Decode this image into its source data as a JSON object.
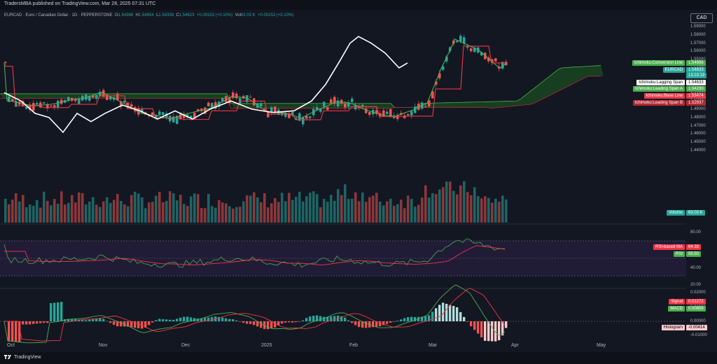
{
  "header": {
    "published": "TradersMBA published on TradingView.com, Mar 28, 2025 07:31 UTC"
  },
  "currency_button": "CAD",
  "legend": {
    "symbol": "EURCAD · Euro / Canadian Dollar · 1D · PEPPERSTONE",
    "open_label": "O",
    "open": "1.54386",
    "high_label": "H",
    "high": "1.54654",
    "low_label": "L",
    "low": "1.54338",
    "close_label": "C",
    "close": "1.54623",
    "change": "+0.00153 (+0.10%)",
    "vol_label": "Vol",
    "vol": "63.03 K",
    "vol_change": "+0.00153 (+0.10%)"
  },
  "price_axis": [
    "1.59000",
    "1.58000",
    "1.57000",
    "1.56000",
    "1.55000",
    "1.54000",
    "1.53000",
    "1.52000",
    "1.51000",
    "1.50000",
    "1.49000",
    "1.48000",
    "1.47000",
    "1.46000",
    "1.45000",
    "1.44000"
  ],
  "rsi_axis": [
    "80.00",
    "40.00",
    "20.00"
  ],
  "macd_axis": [
    "0.02000",
    "0.01000",
    "0.00000",
    "-0.01000"
  ],
  "tags": {
    "conversion": {
      "name": "Ichimoku:Conversion Line",
      "value": "1.54986",
      "color": "#4caf50"
    },
    "eurcad": {
      "name": "EURCAD",
      "value": "1.54633",
      "timer": "13:23:19",
      "color": "#26a69a"
    },
    "lagging": {
      "name": "Ichimoku:Lagging Span",
      "value": "1.54633",
      "color": "#ffffff"
    },
    "leadA": {
      "name": "Ichimoku:Leading Span A",
      "value": "1.54230",
      "color": "#4caf50"
    },
    "base": {
      "name": "Ichimoku:Base Line",
      "value": "1.53474",
      "color": "#f23645"
    },
    "leadB": {
      "name": "Ichimoku:Leading Span B",
      "value": "1.52937",
      "color": "#b22833"
    },
    "volume": {
      "name": "Volume",
      "value": "63.03 K",
      "color": "#26a69a"
    },
    "rsima": {
      "name": "RSI-based MA",
      "value": "64.33",
      "color": "#f23645"
    },
    "rsi": {
      "name": "RSI",
      "value": "55.50",
      "color": "#4caf50"
    },
    "signal": {
      "name": "Signal",
      "value": "0.01272",
      "color": "#f23645"
    },
    "macd": {
      "name": "MACD",
      "value": "0.00858",
      "color": "#4caf50"
    },
    "hist": {
      "name": "Histogram",
      "value": "-0.00414",
      "color": "#fccbcd"
    }
  },
  "time_axis": [
    "Oct",
    "Nov",
    "Dec",
    "2025",
    "Feb",
    "Mar",
    "Apr",
    "May"
  ],
  "footer": {
    "brand": "TradingView"
  },
  "colors": {
    "up": "#26a69a",
    "down": "#ef5350",
    "bg": "#131722"
  }
}
